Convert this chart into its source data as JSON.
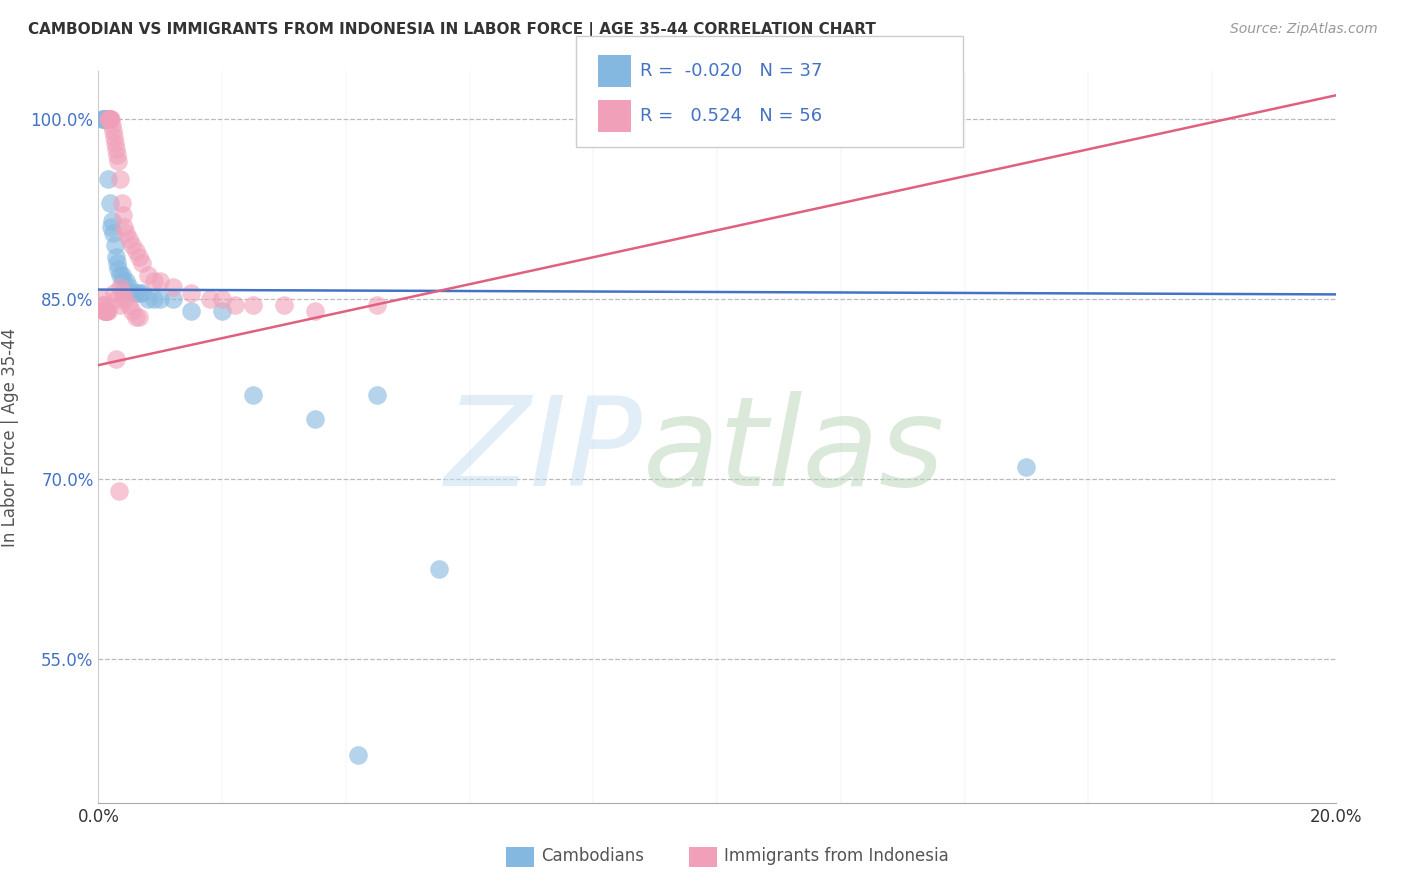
{
  "title": "CAMBODIAN VS IMMIGRANTS FROM INDONESIA IN LABOR FORCE | AGE 35-44 CORRELATION CHART",
  "source": "Source: ZipAtlas.com",
  "ylabel": "In Labor Force | Age 35-44",
  "ytick_vals": [
    55.0,
    70.0,
    85.0,
    100.0
  ],
  "xlim": [
    0.0,
    20.0
  ],
  "ylim": [
    43.0,
    104.0
  ],
  "legend_r_camb": "-0.020",
  "legend_n_camb": "37",
  "legend_r_indo": "0.524",
  "legend_n_indo": "56",
  "camb_color": "#85b8e0",
  "indo_color": "#f0a0b8",
  "camb_line_color": "#4472c4",
  "indo_line_color": "#e06080",
  "camb_trend_y0": 85.8,
  "camb_trend_y1": 85.4,
  "indo_trend_y0": 79.5,
  "indo_trend_y1": 102.0,
  "camb_x": [
    0.05,
    0.08,
    0.1,
    0.12,
    0.13,
    0.15,
    0.16,
    0.18,
    0.2,
    0.22,
    0.24,
    0.26,
    0.28,
    0.3,
    0.32,
    0.35,
    0.38,
    0.4,
    0.45,
    0.5,
    0.55,
    0.6,
    0.65,
    0.7,
    0.8,
    0.9,
    1.0,
    1.2,
    1.5,
    2.0,
    2.5,
    3.5,
    4.5,
    5.5,
    0.1,
    15.0,
    4.2
  ],
  "camb_y": [
    100.0,
    100.0,
    100.0,
    100.0,
    100.0,
    100.0,
    95.0,
    93.0,
    91.0,
    91.5,
    90.5,
    89.5,
    88.5,
    88.0,
    87.5,
    87.0,
    87.0,
    86.5,
    86.5,
    86.0,
    85.5,
    85.5,
    85.5,
    85.5,
    85.0,
    85.0,
    85.0,
    85.0,
    84.0,
    84.0,
    77.0,
    75.0,
    77.0,
    62.5,
    100.0,
    71.0,
    47.0
  ],
  "indo_x": [
    0.05,
    0.07,
    0.08,
    0.09,
    0.1,
    0.11,
    0.12,
    0.13,
    0.14,
    0.15,
    0.16,
    0.17,
    0.18,
    0.19,
    0.2,
    0.22,
    0.24,
    0.25,
    0.26,
    0.28,
    0.3,
    0.32,
    0.35,
    0.38,
    0.4,
    0.42,
    0.45,
    0.5,
    0.55,
    0.6,
    0.65,
    0.7,
    0.8,
    0.9,
    1.0,
    1.2,
    1.5,
    2.0,
    2.5,
    3.0,
    3.5,
    0.25,
    0.3,
    0.35,
    0.42,
    0.5,
    0.55,
    0.6,
    0.65,
    0.35,
    0.4,
    1.8,
    2.2,
    4.5,
    0.28,
    0.33
  ],
  "indo_y": [
    85.0,
    84.5,
    84.5,
    84.0,
    84.0,
    84.0,
    84.0,
    84.0,
    84.0,
    84.0,
    100.0,
    100.0,
    100.0,
    100.0,
    100.0,
    99.5,
    99.0,
    98.5,
    98.0,
    97.5,
    97.0,
    96.5,
    95.0,
    93.0,
    92.0,
    91.0,
    90.5,
    90.0,
    89.5,
    89.0,
    88.5,
    88.0,
    87.0,
    86.5,
    86.5,
    86.0,
    85.5,
    85.0,
    84.5,
    84.5,
    84.0,
    85.5,
    85.0,
    84.5,
    85.0,
    84.5,
    84.0,
    83.5,
    83.5,
    86.0,
    85.5,
    85.0,
    84.5,
    84.5,
    80.0,
    69.0
  ]
}
